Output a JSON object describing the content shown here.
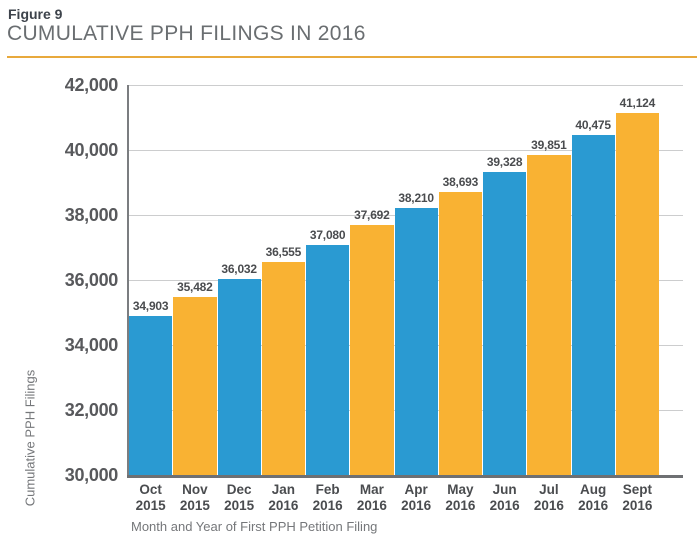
{
  "header": {
    "figure_label": "Figure 9",
    "title": "CUMULATIVE PPH FILINGS IN 2016"
  },
  "chart_data": {
    "type": "bar",
    "title": "CUMULATIVE PPH FILINGS IN 2016",
    "xlabel": "Month and Year of First PPH Petition Filing",
    "ylabel": "Cumulative PPH Filings",
    "ylim": [
      30000,
      42000
    ],
    "ytick_interval": 2000,
    "yticks": [
      "42,000",
      "40,000",
      "38,000",
      "36,000",
      "34,000",
      "32,000",
      "30,000"
    ],
    "grid": "horizontal",
    "legend": "none",
    "categories": [
      "Oct 2015",
      "Nov 2015",
      "Dec 2015",
      "Jan 2016",
      "Feb 2016",
      "Mar 2016",
      "Apr 2016",
      "May 2016",
      "Jun 2016",
      "Jul 2016",
      "Aug 2016",
      "Sept 2016"
    ],
    "category_lines": [
      [
        "Oct",
        "2015"
      ],
      [
        "Nov",
        "2015"
      ],
      [
        "Dec",
        "2015"
      ],
      [
        "Jan",
        "2016"
      ],
      [
        "Feb",
        "2016"
      ],
      [
        "Mar",
        "2016"
      ],
      [
        "Apr",
        "2016"
      ],
      [
        "May",
        "2016"
      ],
      [
        "Jun",
        "2016"
      ],
      [
        "Jul",
        "2016"
      ],
      [
        "Aug",
        "2016"
      ],
      [
        "Sept",
        "2016"
      ]
    ],
    "values": [
      34903,
      35482,
      36032,
      36555,
      37080,
      37692,
      38210,
      38693,
      39328,
      39851,
      40475,
      41124
    ],
    "value_labels": [
      "34,903",
      "35,482",
      "36,032",
      "36,555",
      "37,080",
      "37,692",
      "38,210",
      "38,693",
      "39,328",
      "39,851",
      "40,475",
      "41,124"
    ],
    "bar_color_alternating": [
      "#2a9ad2",
      "#f9b233"
    ]
  },
  "colors": {
    "bar_blue": "#2a9ad2",
    "bar_orange": "#f9b233",
    "accent_rule": "#e8a93c",
    "grid_line": "#cccdce",
    "axis_line": "#6e7073",
    "tick_text": "#58595c",
    "value_text": "#4a4c4f",
    "title_text": "#6a6e71",
    "figure_label_text": "#3d434b"
  }
}
